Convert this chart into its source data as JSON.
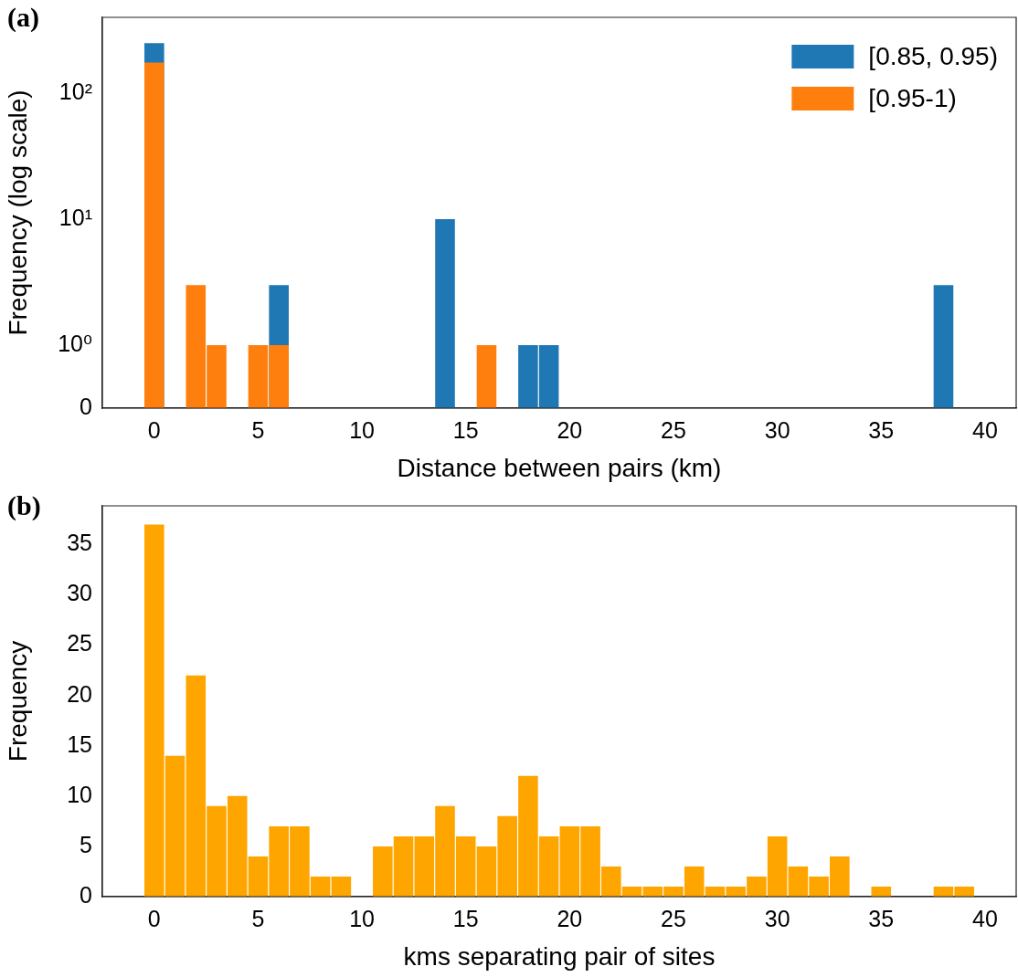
{
  "chart_data": [
    {
      "type": "histogram",
      "title": "(a)",
      "xlabel": "Distance between pairs (km)",
      "ylabel": "Frequency (log scale)",
      "bins": [
        -0.5,
        0.5,
        1.5,
        2.5,
        3.5,
        4.5,
        5.5,
        6.5,
        7.5,
        8.5,
        9.5,
        10.5,
        11.5,
        12.5,
        13.5,
        14.5,
        15.5,
        16.5,
        17.5,
        18.5,
        19.5,
        20.5,
        21.5,
        22.5,
        23.5,
        24.5,
        25.5,
        26.5,
        27.5,
        28.5,
        29.5,
        30.5,
        31.5,
        32.5,
        33.5,
        34.5,
        35.5,
        36.5,
        37.5,
        38.5,
        39.5
      ],
      "series": [
        {
          "name": "[0.85, 0.95)",
          "color": "#1f77b4",
          "values": [
            250,
            0,
            0,
            0,
            0,
            0,
            3,
            0,
            0,
            0,
            0,
            0,
            0,
            0,
            10,
            0,
            0,
            0,
            1,
            1,
            0,
            0,
            0,
            0,
            0,
            0,
            0,
            0,
            0,
            0,
            0,
            0,
            0,
            0,
            0,
            0,
            0,
            0,
            3,
            0
          ]
        },
        {
          "name": "[0.95-1)",
          "color": "#ff7f0e",
          "values": [
            175,
            0,
            3,
            1,
            0,
            1,
            1,
            0,
            0,
            0,
            0,
            0,
            0,
            0,
            0,
            0,
            1,
            0,
            0,
            0,
            0,
            0,
            0,
            0,
            0,
            0,
            0,
            0,
            0,
            0,
            0,
            0,
            0,
            0,
            0,
            0,
            0,
            0,
            0,
            0
          ]
        }
      ],
      "log": "y",
      "xlim": [
        -2.5,
        41.5
      ],
      "xticks": [
        0,
        5,
        10,
        15,
        20,
        25,
        30,
        35,
        40
      ],
      "ylim": [
        0,
        400
      ],
      "yticks": [
        0,
        {
          "value": 1,
          "label": "10⁰"
        },
        {
          "value": 10,
          "label": "10¹"
        },
        {
          "value": 100,
          "label": "10²"
        }
      ],
      "legend": "top right",
      "grid": false
    },
    {
      "type": "histogram",
      "title": "(b)",
      "xlabel": "kms separating pair of sites",
      "ylabel": "Frequency",
      "bins": [
        -0.5,
        0.5,
        1.5,
        2.5,
        3.5,
        4.5,
        5.5,
        6.5,
        7.5,
        8.5,
        9.5,
        10.5,
        11.5,
        12.5,
        13.5,
        14.5,
        15.5,
        16.5,
        17.5,
        18.5,
        19.5,
        20.5,
        21.5,
        22.5,
        23.5,
        24.5,
        25.5,
        26.5,
        27.5,
        28.5,
        29.5,
        30.5,
        31.5,
        32.5,
        33.5,
        34.5,
        35.5,
        36.5,
        37.5,
        38.5,
        39.5
      ],
      "values": [
        37,
        14,
        22,
        9,
        10,
        4,
        7,
        7,
        2,
        2,
        0,
        5,
        6,
        6,
        9,
        6,
        5,
        8,
        12,
        6,
        7,
        7,
        3,
        1,
        1,
        1,
        3,
        1,
        1,
        2,
        6,
        3,
        2,
        4,
        0,
        1,
        0,
        0,
        1,
        1
      ],
      "color": "#ffa500",
      "xlim": [
        -2.5,
        41.5
      ],
      "xticks": [
        0,
        5,
        10,
        15,
        20,
        25,
        30,
        35,
        40
      ],
      "ylim": [
        0,
        38.85
      ],
      "yticks": [
        0,
        5,
        10,
        15,
        20,
        25,
        30,
        35
      ],
      "legend": false,
      "grid": false
    }
  ]
}
